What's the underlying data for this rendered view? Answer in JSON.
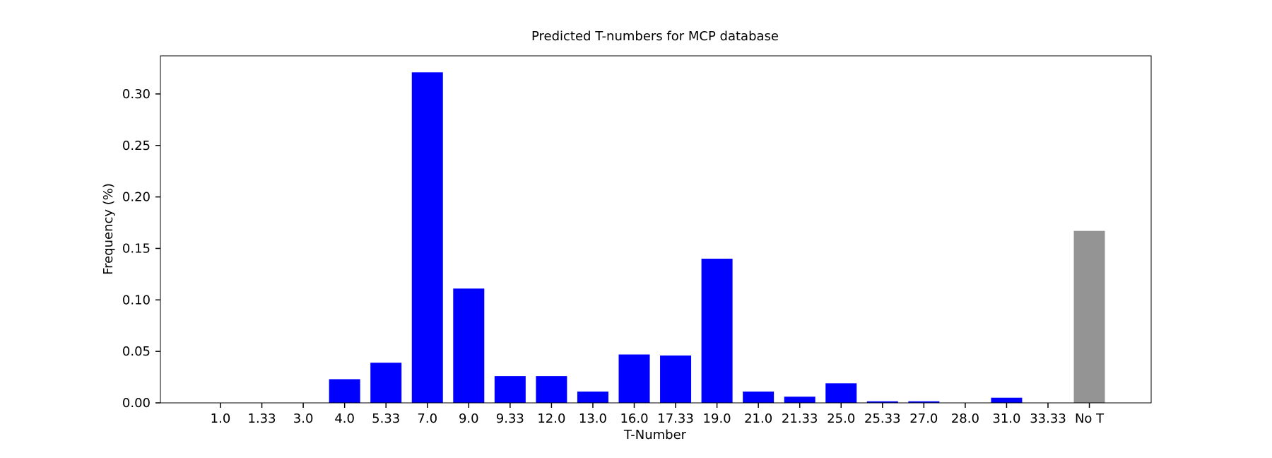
{
  "chart_data": {
    "type": "bar",
    "title": "Predicted T-numbers for MCP database",
    "xlabel": "T-Number",
    "ylabel": "Frequency (%)",
    "categories": [
      "1.0",
      "1.33",
      "3.0",
      "4.0",
      "5.33",
      "7.0",
      "9.0",
      "9.33",
      "12.0",
      "13.0",
      "16.0",
      "17.33",
      "19.0",
      "21.0",
      "21.33",
      "25.0",
      "25.33",
      "27.0",
      "28.0",
      "31.0",
      "33.33",
      "No T"
    ],
    "values": [
      0,
      0,
      0,
      0.023,
      0.039,
      0.321,
      0.111,
      0.026,
      0.026,
      0.011,
      0.047,
      0.046,
      0.14,
      0.011,
      0.006,
      0.019,
      0.0015,
      0.0015,
      0,
      0.005,
      0,
      0.167
    ],
    "bar_colors": [
      "#0000ff",
      "#0000ff",
      "#0000ff",
      "#0000ff",
      "#0000ff",
      "#0000ff",
      "#0000ff",
      "#0000ff",
      "#0000ff",
      "#0000ff",
      "#0000ff",
      "#0000ff",
      "#0000ff",
      "#0000ff",
      "#0000ff",
      "#0000ff",
      "#0000ff",
      "#0000ff",
      "#0000ff",
      "#0000ff",
      "#0000ff",
      "#939493"
    ],
    "yticks": [
      0.0,
      0.05,
      0.1,
      0.15,
      0.2,
      0.25,
      0.3
    ],
    "ytick_labels": [
      "0.00",
      "0.05",
      "0.10",
      "0.15",
      "0.20",
      "0.25",
      "0.30"
    ],
    "ylim": [
      0,
      0.337
    ],
    "grid": false,
    "legend": "none"
  }
}
